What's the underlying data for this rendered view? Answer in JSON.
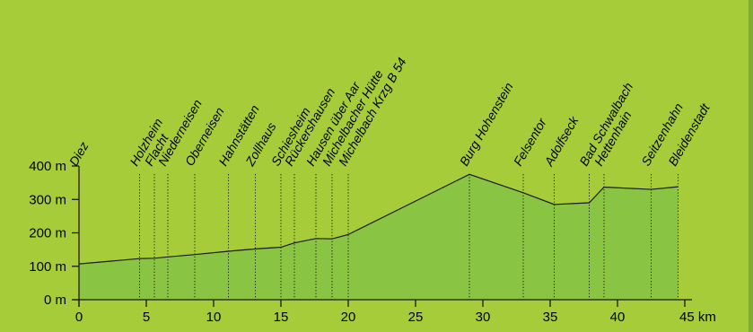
{
  "colors": {
    "background": "#a6cd39",
    "area_fill": "#8ac443",
    "line": "#1a1a1a",
    "text": "#000000"
  },
  "chart_data": {
    "type": "area",
    "title": "",
    "xlabel": "",
    "ylabel": "",
    "xlim": [
      0,
      45
    ],
    "ylim": [
      0,
      400
    ],
    "x_ticks": [
      {
        "value": 0,
        "label": "0"
      },
      {
        "value": 5,
        "label": "5"
      },
      {
        "value": 10,
        "label": "10"
      },
      {
        "value": 15,
        "label": "15"
      },
      {
        "value": 20,
        "label": "20"
      },
      {
        "value": 25,
        "label": "25"
      },
      {
        "value": 30,
        "label": "30"
      },
      {
        "value": 35,
        "label": "35"
      },
      {
        "value": 40,
        "label": "40"
      },
      {
        "value": 45,
        "label": "45 km"
      }
    ],
    "y_ticks": [
      {
        "value": 0,
        "label": "0 m"
      },
      {
        "value": 100,
        "label": "100 m"
      },
      {
        "value": 200,
        "label": "200 m"
      },
      {
        "value": 300,
        "label": "300 m"
      },
      {
        "value": 400,
        "label": "400 m"
      }
    ],
    "grid": false,
    "profile": {
      "x": [
        0,
        4.5,
        5.6,
        6.6,
        8.6,
        11.1,
        13.1,
        15.0,
        16.0,
        17.6,
        18.8,
        20.0,
        29.0,
        33.0,
        35.3,
        37.9,
        39.0,
        42.5,
        44.5
      ],
      "y": [
        107,
        123,
        124,
        128,
        135,
        145,
        152,
        157,
        170,
        183,
        182,
        195,
        375,
        320,
        285,
        290,
        337,
        330,
        338
      ]
    },
    "places": [
      {
        "name": "Diez",
        "x": 0
      },
      {
        "name": "Holzheim",
        "x": 4.5
      },
      {
        "name": "Flacht",
        "x": 5.6
      },
      {
        "name": "Niederneisen",
        "x": 6.6
      },
      {
        "name": "Oberneisen",
        "x": 8.6
      },
      {
        "name": "Hahnstätten",
        "x": 11.1
      },
      {
        "name": "Zollhaus",
        "x": 13.1
      },
      {
        "name": "Schiesheim",
        "x": 15.0
      },
      {
        "name": "Rückershausen",
        "x": 16.0
      },
      {
        "name": "Hausen über Aar",
        "x": 17.6
      },
      {
        "name": "Michelbacher Hütte",
        "x": 18.8
      },
      {
        "name": "Michelbach Krzg B 54",
        "x": 20.0
      },
      {
        "name": "Burg Hohenstein",
        "x": 29.0
      },
      {
        "name": "Felsentor",
        "x": 33.0
      },
      {
        "name": "Adolfseck",
        "x": 35.3
      },
      {
        "name": "Bad Schwalbach",
        "x": 37.9
      },
      {
        "name": "Hettenhain",
        "x": 39.0
      },
      {
        "name": "Seitzenhahn",
        "x": 42.5
      },
      {
        "name": "Bleidenstadt",
        "x": 44.5
      }
    ]
  }
}
